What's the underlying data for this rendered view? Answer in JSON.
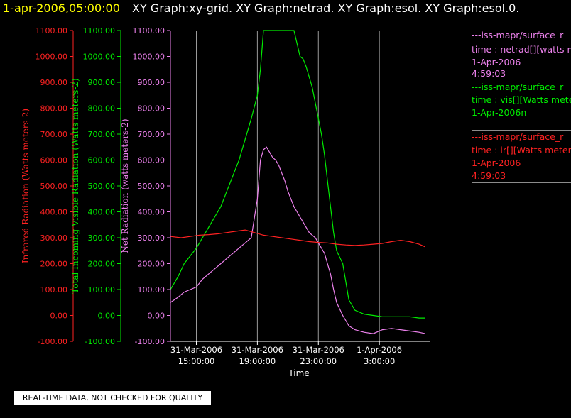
{
  "header": {
    "date": "1-apr-2006,05:00:00",
    "titles": "XY Graph:xy-grid.  XY Graph:netrad.  XY Graph:esol.  XY Graph:esol.0."
  },
  "legend": [
    {
      "lines": [
        "---iss-mapr/surface_r",
        "time : netrad[][watts me",
        "1-Apr-2006",
        "4:59:03"
      ],
      "color": "#ee82ee"
    },
    {
      "lines": [
        "---iss-mapr/surface_r",
        "time : vis[][Watts mete",
        "1-Apr-2006n"
      ],
      "color": "#00ee00"
    },
    {
      "lines": [
        "---iss-mapr/surface_r",
        "time : ir[][Watts meters",
        "1-Apr-2006",
        "4:59:03"
      ],
      "color": "#ff2222"
    }
  ],
  "notice": "REAL-TIME DATA, NOT CHECKED FOR QUALITY",
  "chart_data": {
    "type": "line",
    "xlabel": "Time",
    "x_ticks": [
      {
        "x": 15,
        "line1": "31-Mar-2006",
        "line2": "15:00:00"
      },
      {
        "x": 19,
        "line1": "31-Mar-2006",
        "line2": "19:00:00"
      },
      {
        "x": 23,
        "line1": "31-Mar-2006",
        "line2": "23:00:00"
      },
      {
        "x": 27,
        "line1": "1-Apr-2006",
        "line2": "3:00:00"
      }
    ],
    "xlim": [
      13.3,
      30.3
    ],
    "ylim": [
      -100,
      1100
    ],
    "y_ticks": [
      -100,
      0,
      100,
      200,
      300,
      400,
      500,
      600,
      700,
      800,
      900,
      1000,
      1100
    ],
    "axes": [
      {
        "label": "Infrared Radiation (Watts meters-2)",
        "color": "#ff2222"
      },
      {
        "label": "Total Incoming Visible Radiation (Watts meters-2)",
        "color": "#00ee00"
      },
      {
        "label": "Net Radiation (watts meters-2)",
        "color": "#ee82ee"
      }
    ],
    "series": [
      {
        "color": "#00ee00",
        "x": [
          13.3,
          13.8,
          14.2,
          14.6,
          15.0,
          15.4,
          15.8,
          16.2,
          16.6,
          17.0,
          17.4,
          17.8,
          18.2,
          18.6,
          19.0,
          19.2,
          19.4,
          19.6,
          19.8,
          20.0,
          20.2,
          20.4,
          20.6,
          20.8,
          21.0,
          21.2,
          21.4,
          21.6,
          21.8,
          22.0,
          22.2,
          22.4,
          22.6,
          22.8,
          23.0,
          23.2,
          23.4,
          23.6,
          23.8,
          24.0,
          24.2,
          24.6,
          25.0,
          25.4,
          26.0,
          26.6,
          27.2,
          27.8,
          28.4,
          29.0,
          29.6,
          30.0
        ],
        "values": [
          100,
          150,
          200,
          230,
          260,
          300,
          340,
          380,
          420,
          480,
          540,
          600,
          680,
          760,
          850,
          950,
          1100,
          1100,
          1100,
          1100,
          1100,
          1100,
          1100,
          1100,
          1100,
          1100,
          1100,
          1050,
          1000,
          990,
          960,
          920,
          880,
          820,
          760,
          700,
          620,
          520,
          420,
          320,
          250,
          200,
          60,
          20,
          5,
          0,
          -5,
          -5,
          -5,
          -5,
          -10,
          -10
        ]
      },
      {
        "color": "#ee82ee",
        "x": [
          13.3,
          13.8,
          14.2,
          14.6,
          15.0,
          15.4,
          15.8,
          16.2,
          16.6,
          17.0,
          17.4,
          17.8,
          18.2,
          18.6,
          19.0,
          19.2,
          19.4,
          19.6,
          19.8,
          20.0,
          20.2,
          20.4,
          20.6,
          20.8,
          21.0,
          21.2,
          21.4,
          21.6,
          21.8,
          22.0,
          22.2,
          22.4,
          22.6,
          22.8,
          23.0,
          23.2,
          23.4,
          23.6,
          23.8,
          24.0,
          24.2,
          24.6,
          25.0,
          25.4,
          26.0,
          26.6,
          27.2,
          27.8,
          28.4,
          29.0,
          29.6,
          30.0
        ],
        "values": [
          50,
          70,
          90,
          100,
          110,
          140,
          160,
          180,
          200,
          220,
          240,
          260,
          280,
          300,
          450,
          600,
          640,
          650,
          630,
          610,
          600,
          580,
          550,
          520,
          480,
          450,
          420,
          400,
          380,
          360,
          340,
          320,
          310,
          300,
          280,
          260,
          240,
          200,
          160,
          100,
          50,
          0,
          -40,
          -55,
          -65,
          -70,
          -55,
          -50,
          -55,
          -60,
          -65,
          -70
        ]
      },
      {
        "color": "#ff2222",
        "x": [
          13.3,
          14.0,
          14.6,
          15.2,
          15.8,
          16.4,
          17.0,
          17.6,
          18.2,
          18.8,
          19.4,
          20.0,
          20.6,
          21.2,
          21.8,
          22.4,
          23.0,
          23.6,
          24.2,
          24.8,
          25.4,
          26.0,
          26.6,
          27.2,
          27.8,
          28.4,
          29.0,
          29.6,
          30.0
        ],
        "values": [
          305,
          300,
          305,
          310,
          312,
          315,
          320,
          325,
          330,
          320,
          310,
          305,
          300,
          295,
          290,
          285,
          282,
          280,
          275,
          272,
          270,
          272,
          275,
          278,
          285,
          290,
          285,
          275,
          265
        ]
      }
    ]
  }
}
